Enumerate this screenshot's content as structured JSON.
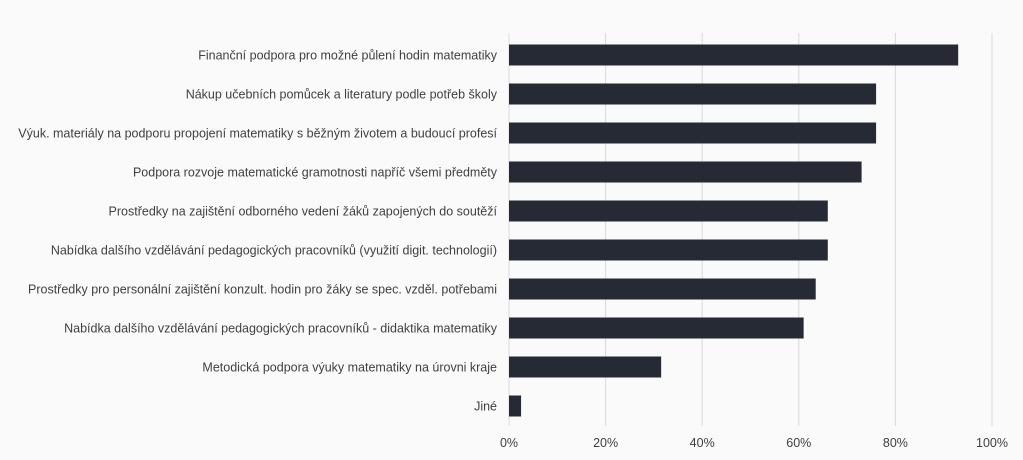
{
  "chart_data": {
    "type": "bar",
    "orientation": "horizontal",
    "categories": [
      "Finanční podpora pro možné půlení hodin matematiky",
      "Nákup učebních pomůcek a literatury podle potřeb školy",
      "Výuk. materiály na podporu propojení matematiky s běžným životem a budoucí profesí",
      "Podpora rozvoje matematické gramotnosti napříč všemi předměty",
      "Prostředky na zajištění odborného vedení žáků zapojených do soutěží",
      "Nabídka dalšího vzdělávání pedagogických pracovníků (využití digit. technologií)",
      "Prostředky pro personální zajištění konzult. hodin pro žáky se spec. vzděl. potřebami",
      "Nabídka dalšího vzdělávání pedagogických pracovníků - didaktika matematiky",
      "Metodická podpora výuky matematiky na úrovni kraje",
      "Jiné"
    ],
    "values": [
      93,
      76,
      76,
      73,
      66,
      66,
      63.5,
      61,
      31.5,
      2.5
    ],
    "xlim": [
      0,
      100
    ],
    "xticks": [
      0,
      20,
      40,
      60,
      80,
      100
    ],
    "tick_labels": [
      "0%",
      "20%",
      "40%",
      "60%",
      "80%",
      "100%"
    ],
    "title": "",
    "xlabel": "",
    "ylabel": "",
    "grid": "vertical",
    "legend": "none",
    "bar_color": "#252a35",
    "grid_color": "#d9d9d9",
    "background": "#fafafa"
  }
}
